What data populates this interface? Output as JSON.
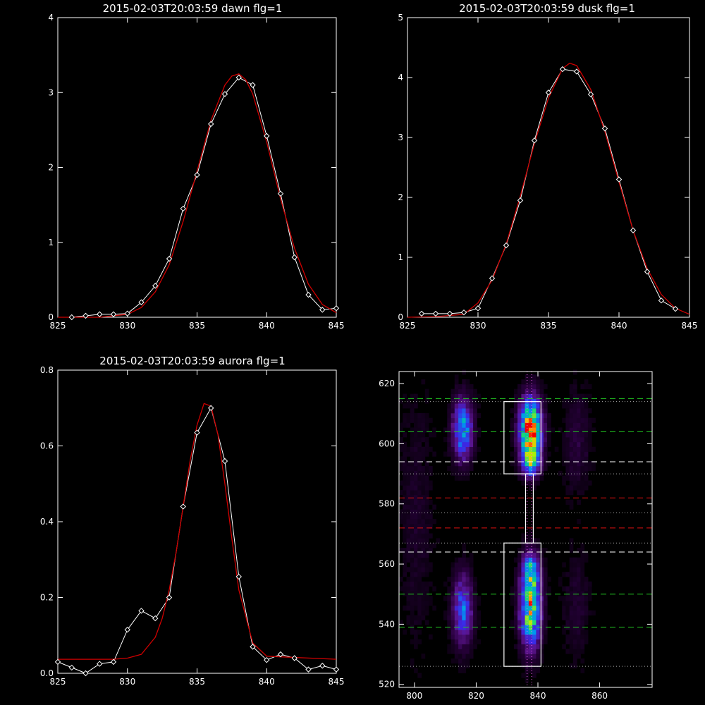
{
  "colors": {
    "background": "#000000",
    "axes": "#ffffff",
    "measured": "#ffffff",
    "fit": "#d00000",
    "green_line": "#22cc22",
    "white_line": "#ffffff",
    "red_line": "#dd1111",
    "dotted_line": "#aaaaaa"
  },
  "chart_data": [
    {
      "type": "line",
      "title": "2015-02-03T20:03:59 dawn flg=1",
      "xlim": [
        825,
        845
      ],
      "ylim": [
        0,
        4
      ],
      "xticks": [
        "825",
        "830",
        "835",
        "840",
        "845"
      ],
      "yticks": [
        "0",
        "1",
        "2",
        "3",
        "4"
      ],
      "series": [
        {
          "marker": "diamond",
          "x": [
            826,
            827,
            828,
            829,
            830,
            831,
            832,
            833,
            834,
            835,
            836,
            837,
            838,
            839,
            840,
            841,
            842,
            843,
            844,
            845
          ],
          "y": [
            0.0,
            0.02,
            0.04,
            0.04,
            0.05,
            0.2,
            0.42,
            0.78,
            1.45,
            1.9,
            2.58,
            2.98,
            3.2,
            3.1,
            2.42,
            1.65,
            0.8,
            0.3,
            0.1,
            0.12
          ]
        },
        {
          "marker": "none",
          "x": [
            825,
            828,
            830,
            831,
            832,
            833,
            834,
            835,
            836,
            837,
            837.5,
            838,
            838.5,
            839,
            840,
            841,
            842,
            843,
            844,
            845
          ],
          "y": [
            0.0,
            0.0,
            0.04,
            0.13,
            0.34,
            0.7,
            1.28,
            1.95,
            2.63,
            3.1,
            3.22,
            3.25,
            3.17,
            2.98,
            2.34,
            1.58,
            0.92,
            0.44,
            0.17,
            0.06
          ]
        }
      ]
    },
    {
      "type": "line",
      "title": "2015-02-03T20:03:59 dusk flg=1",
      "xlim": [
        825,
        845
      ],
      "ylim": [
        0,
        5
      ],
      "xticks": [
        "825",
        "830",
        "835",
        "840",
        "845"
      ],
      "yticks": [
        "0",
        "1",
        "2",
        "3",
        "4",
        "5"
      ],
      "series": [
        {
          "marker": "diamond",
          "x": [
            826,
            827,
            828,
            829,
            830,
            831,
            832,
            833,
            834,
            835,
            836,
            837,
            838,
            839,
            840,
            841,
            842,
            843,
            844
          ],
          "y": [
            0.06,
            0.06,
            0.06,
            0.08,
            0.15,
            0.65,
            1.2,
            1.95,
            2.95,
            3.75,
            4.14,
            4.1,
            3.72,
            3.15,
            2.3,
            1.45,
            0.76,
            0.28,
            0.14
          ]
        },
        {
          "marker": "none",
          "x": [
            825,
            827,
            829,
            830,
            831,
            832,
            833,
            834,
            835,
            836,
            836.5,
            837,
            838,
            839,
            840,
            841,
            842,
            843,
            844,
            845
          ],
          "y": [
            0.0,
            0.01,
            0.05,
            0.24,
            0.62,
            1.22,
            2.02,
            2.9,
            3.66,
            4.15,
            4.24,
            4.2,
            3.8,
            3.1,
            2.26,
            1.45,
            0.81,
            0.38,
            0.15,
            0.05
          ]
        }
      ]
    },
    {
      "type": "line",
      "title": "2015-02-03T20:03:59 aurora flg=1",
      "xlim": [
        825,
        845
      ],
      "ylim": [
        0,
        0.8
      ],
      "xticks": [
        "825",
        "830",
        "835",
        "840",
        "845"
      ],
      "yticks": [
        "0.0",
        "0.2",
        "0.4",
        "0.6",
        "0.8"
      ],
      "series": [
        {
          "marker": "diamond",
          "x": [
            825,
            826,
            827,
            828,
            829,
            830,
            831,
            832,
            833,
            834,
            835,
            836,
            837,
            838,
            839,
            840,
            841,
            842,
            843,
            844,
            845
          ],
          "y": [
            0.03,
            0.015,
            0.0,
            0.025,
            0.03,
            0.115,
            0.165,
            0.145,
            0.2,
            0.44,
            0.635,
            0.7,
            0.56,
            0.255,
            0.07,
            0.035,
            0.05,
            0.04,
            0.01,
            0.02,
            0.01
          ]
        },
        {
          "marker": "none",
          "x": [
            825,
            829,
            830,
            831,
            832,
            832.5,
            833,
            833.5,
            834,
            834.5,
            835,
            835.5,
            836,
            836.5,
            837,
            837.5,
            838,
            839,
            840,
            845
          ],
          "y": [
            0.037,
            0.037,
            0.04,
            0.05,
            0.095,
            0.145,
            0.22,
            0.32,
            0.44,
            0.56,
            0.655,
            0.712,
            0.705,
            0.63,
            0.5,
            0.355,
            0.22,
            0.08,
            0.045,
            0.037
          ]
        }
      ]
    },
    {
      "type": "heatmap",
      "title": "",
      "xlim": [
        795,
        877
      ],
      "ylim": [
        519,
        624
      ],
      "xticks": [
        "800",
        "820",
        "840",
        "860"
      ],
      "yticks": [
        "520",
        "540",
        "560",
        "580",
        "600",
        "620"
      ],
      "blobs": [
        {
          "x": 815,
          "y": 604,
          "sx": 2.2,
          "sy": 7,
          "amp": 0.55
        },
        {
          "x": 837,
          "y": 604,
          "sx": 2.4,
          "sy": 7,
          "amp": 1.0
        },
        {
          "x": 837,
          "y": 593,
          "sx": 2.0,
          "sy": 3,
          "amp": 0.5
        },
        {
          "x": 815,
          "y": 544,
          "sx": 2.2,
          "sy": 8,
          "amp": 0.45
        },
        {
          "x": 837,
          "y": 545,
          "sx": 2.3,
          "sy": 9,
          "amp": 0.8
        },
        {
          "x": 837,
          "y": 558,
          "sx": 1.8,
          "sy": 4,
          "amp": 0.35
        },
        {
          "x": 852,
          "y": 600,
          "sx": 3.0,
          "sy": 12,
          "amp": 0.1
        },
        {
          "x": 852,
          "y": 545,
          "sx": 3.0,
          "sy": 12,
          "amp": 0.08
        },
        {
          "x": 800,
          "y": 575,
          "sx": 4.0,
          "sy": 30,
          "amp": 0.06
        }
      ],
      "rectangles": [
        {
          "x0": 829,
          "x1": 841,
          "y0": 590,
          "y1": 614
        },
        {
          "x0": 829,
          "x1": 841,
          "y0": 526,
          "y1": 567
        },
        {
          "x0": 836,
          "x1": 838.5,
          "y0": 567,
          "y1": 590
        }
      ],
      "hlines": [
        {
          "y": 615,
          "style": "green-dash"
        },
        {
          "y": 604,
          "style": "green-dash"
        },
        {
          "y": 594,
          "style": "white-dash"
        },
        {
          "y": 582,
          "style": "red-dash"
        },
        {
          "y": 572,
          "style": "red-dash"
        },
        {
          "y": 564,
          "style": "white-dash"
        },
        {
          "y": 550,
          "style": "green-dash"
        },
        {
          "y": 539,
          "style": "green-dash"
        },
        {
          "y": 614,
          "style": "dotted"
        },
        {
          "y": 590,
          "style": "dotted"
        },
        {
          "y": 577,
          "style": "dotted"
        },
        {
          "y": 567,
          "style": "dotted"
        },
        {
          "y": 526,
          "style": "dotted"
        }
      ],
      "vlines": [
        {
          "x": 836.5,
          "style": "dotted"
        },
        {
          "x": 838,
          "style": "dotted"
        }
      ]
    }
  ]
}
